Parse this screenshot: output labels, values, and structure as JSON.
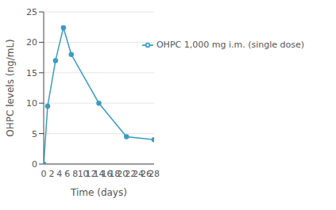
{
  "chart_data": {
    "type": "line",
    "x_label": "Time (days)",
    "y_label": "OHPC levels (ng/mL)",
    "x": [
      0,
      1,
      3,
      5,
      7,
      14,
      21,
      28
    ],
    "series": [
      {
        "name": "OHPC 1,000 mg i.m. (single dose)",
        "color": "#3a9cc4",
        "values": [
          0,
          9.5,
          17,
          22.4,
          18,
          10,
          4.5,
          4
        ],
        "marker": "circle",
        "line_style": "solid"
      }
    ],
    "xlim": [
      0,
      28
    ],
    "xticks": [
      0,
      2,
      4,
      6,
      8,
      10,
      12,
      14,
      16,
      18,
      20,
      22,
      24,
      26,
      28
    ],
    "ylim": [
      0,
      25
    ],
    "yticks": [
      0,
      5,
      10,
      15,
      20,
      25
    ],
    "grid": true,
    "legend": "top right"
  }
}
